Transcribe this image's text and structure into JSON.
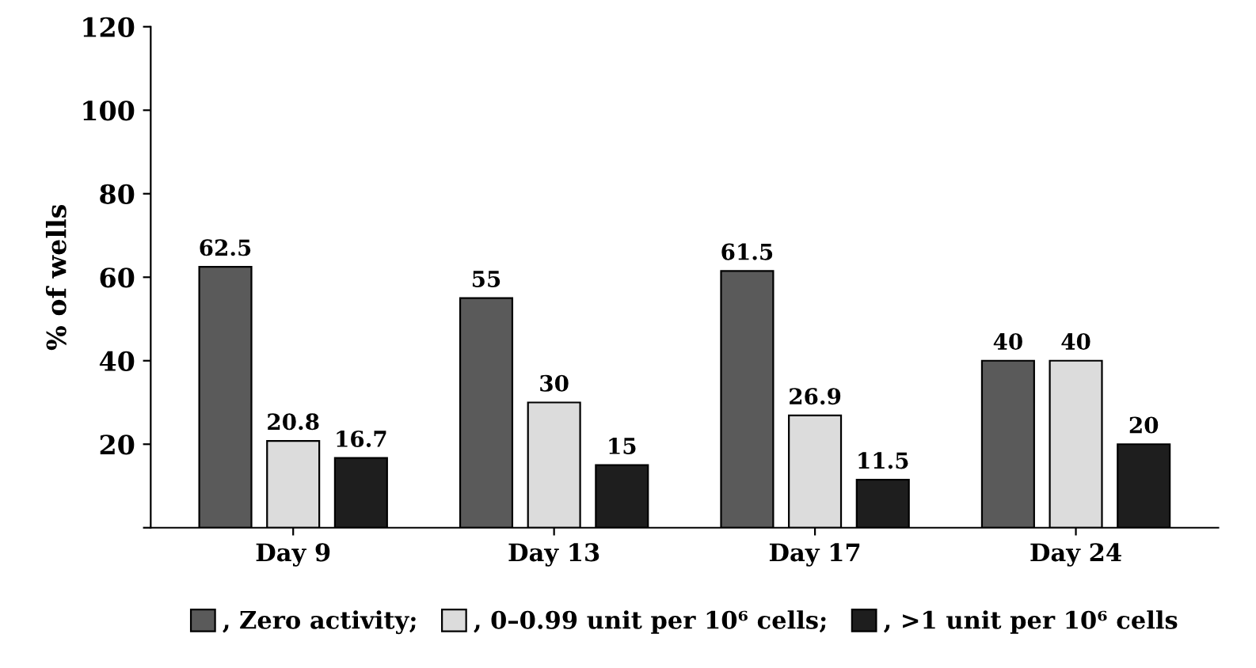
{
  "chart_data": {
    "type": "bar",
    "ylabel": "% of wells",
    "categories": [
      "Day 9",
      "Day 13",
      "Day 17",
      "Day 24"
    ],
    "series": [
      {
        "name": ", Zero activity;",
        "color": "#5a5a5a",
        "values": [
          62.5,
          55,
          61.5,
          40
        ]
      },
      {
        "name": ", 0–0.99 unit per 10⁶ cells;",
        "color": "#dcdcdc",
        "values": [
          20.8,
          30,
          26.9,
          40
        ]
      },
      {
        "name": ", >1 unit per 10⁶ cells",
        "color": "#1e1e1e",
        "values": [
          16.7,
          15,
          11.5,
          20
        ]
      }
    ],
    "ylim": [
      0,
      120
    ],
    "yticks": [
      {
        "value": 0,
        "label": null
      },
      20,
      40,
      60,
      80,
      100,
      120
    ],
    "grid": false,
    "legend": "bottom",
    "data_labels": true
  }
}
